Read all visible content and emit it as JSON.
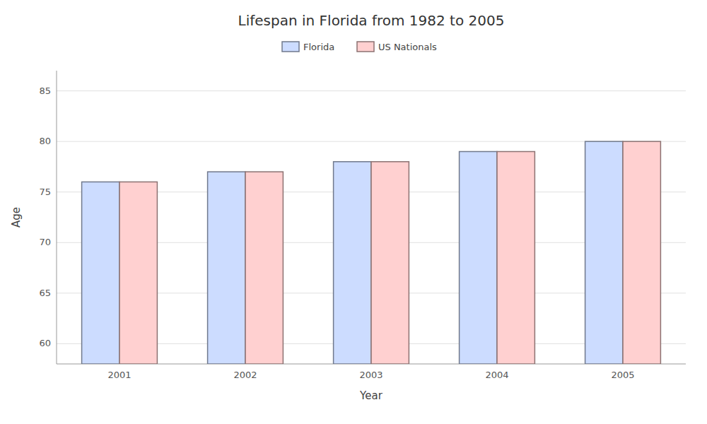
{
  "chart_data": {
    "type": "bar",
    "title": "Lifespan in Florida from 1982 to 2005",
    "xlabel": "Year",
    "ylabel": "Age",
    "categories": [
      "2001",
      "2002",
      "2003",
      "2004",
      "2005"
    ],
    "series": [
      {
        "name": "Florida",
        "color": "#ccdcff",
        "values": [
          76,
          77,
          78,
          79,
          80
        ]
      },
      {
        "name": "US Nationals",
        "color": "#ffd0d0",
        "values": [
          76,
          77,
          78,
          79,
          80
        ]
      }
    ],
    "ylim": [
      58,
      87
    ],
    "yticks": [
      60,
      65,
      70,
      75,
      80,
      85
    ],
    "grid": true,
    "legend": "top"
  }
}
